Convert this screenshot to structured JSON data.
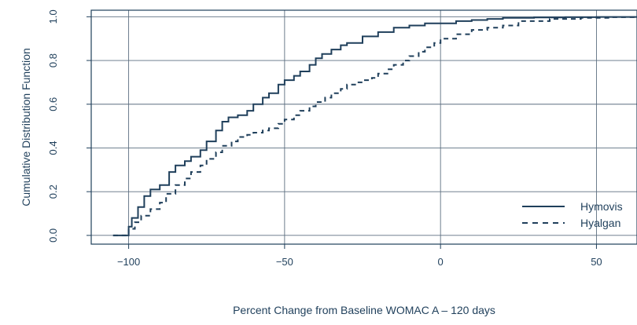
{
  "chart_data": {
    "type": "line",
    "title": "",
    "xlabel": "Percent Change from Baseline WOMAC A – 120 days",
    "ylabel": "Cumulative Distribution Function",
    "xlim": [
      -112,
      63
    ],
    "ylim": [
      -0.04,
      1.03
    ],
    "x_ticks": [
      -100,
      -50,
      0,
      50
    ],
    "x_tick_labels": [
      "−100",
      "−50",
      "0",
      "50"
    ],
    "y_ticks": [
      0.0,
      0.2,
      0.4,
      0.6,
      0.8,
      1.0
    ],
    "y_tick_labels": [
      "0.0",
      "0.2",
      "0.4",
      "0.6",
      "0.8",
      "1.0"
    ],
    "grid": true,
    "legend_position": "bottom-right",
    "line_color": "#1f3f5b",
    "series": [
      {
        "name": "Hymovis",
        "style": "solid",
        "x": [
          -105,
          -101,
          -100,
          -99,
          -97,
          -95,
          -93,
          -90,
          -87,
          -85,
          -82,
          -80,
          -77,
          -75,
          -72,
          -70,
          -68,
          -65,
          -62,
          -60,
          -57,
          -55,
          -52,
          -50,
          -47,
          -45,
          -42,
          -40,
          -38,
          -35,
          -32,
          -30,
          -25,
          -20,
          -15,
          -10,
          -5,
          0,
          5,
          10,
          15,
          20,
          30,
          40,
          50,
          63
        ],
        "y": [
          0.0,
          0.0,
          0.04,
          0.08,
          0.13,
          0.18,
          0.21,
          0.23,
          0.29,
          0.32,
          0.34,
          0.36,
          0.39,
          0.43,
          0.48,
          0.52,
          0.54,
          0.55,
          0.57,
          0.6,
          0.63,
          0.65,
          0.69,
          0.71,
          0.73,
          0.75,
          0.78,
          0.81,
          0.83,
          0.85,
          0.87,
          0.88,
          0.91,
          0.93,
          0.95,
          0.96,
          0.97,
          0.97,
          0.98,
          0.985,
          0.99,
          0.995,
          0.997,
          0.998,
          0.999,
          1.0
        ]
      },
      {
        "name": "Hyalgan",
        "style": "dashed",
        "x": [
          -105,
          -101,
          -100,
          -98,
          -96,
          -93,
          -90,
          -88,
          -85,
          -82,
          -80,
          -77,
          -75,
          -72,
          -70,
          -67,
          -65,
          -62,
          -60,
          -57,
          -55,
          -52,
          -50,
          -47,
          -45,
          -42,
          -40,
          -37,
          -35,
          -32,
          -30,
          -27,
          -25,
          -22,
          -20,
          -17,
          -15,
          -12,
          -10,
          -7,
          -5,
          -2,
          0,
          5,
          10,
          15,
          20,
          25,
          35,
          45,
          55,
          63
        ],
        "y": [
          0.0,
          0.0,
          0.03,
          0.06,
          0.09,
          0.12,
          0.15,
          0.19,
          0.23,
          0.26,
          0.29,
          0.32,
          0.35,
          0.38,
          0.41,
          0.43,
          0.45,
          0.46,
          0.47,
          0.48,
          0.49,
          0.51,
          0.53,
          0.55,
          0.57,
          0.59,
          0.61,
          0.63,
          0.65,
          0.67,
          0.69,
          0.7,
          0.71,
          0.72,
          0.74,
          0.76,
          0.78,
          0.8,
          0.82,
          0.84,
          0.86,
          0.88,
          0.9,
          0.92,
          0.94,
          0.95,
          0.96,
          0.98,
          0.99,
          0.995,
          0.998,
          1.0
        ]
      }
    ]
  }
}
